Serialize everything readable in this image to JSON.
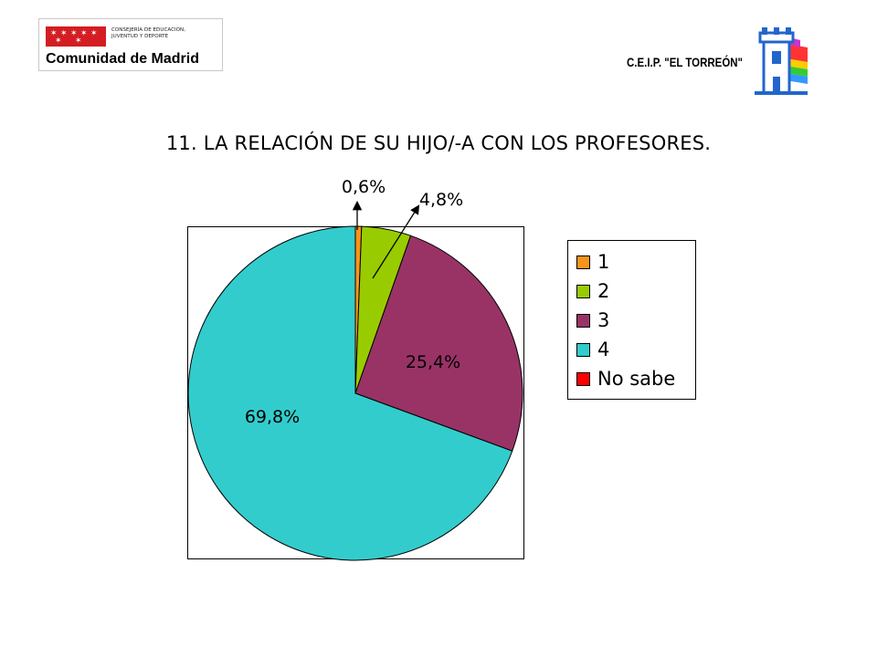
{
  "header": {
    "logo_line1": "CONSEJERÍA DE EDUCACIÓN,",
    "logo_line2": "JUVENTUD Y DEPORTE",
    "logo_main": "Comunidad de Madrid",
    "logo_color": "#d31d22",
    "school_name": "C.E.I.P. \"EL TORREÓN\"",
    "tower_icon": "tower-icon"
  },
  "chart_data": {
    "type": "pie",
    "title": "11. LA RELACIÓN DE SU HIJO/-A CON LOS PROFESORES.",
    "legend_position": "right",
    "slices": [
      {
        "name": "1",
        "value": 0.6,
        "label": "0,6%",
        "color": "#f7941d"
      },
      {
        "name": "2",
        "value": 4.8,
        "label": "4,8%",
        "color": "#99cc00"
      },
      {
        "name": "3",
        "value": 25.4,
        "label": "25,4%",
        "color": "#993366"
      },
      {
        "name": "4",
        "value": 69.8,
        "label": "69,8%",
        "color": "#33cccc"
      },
      {
        "name": "No sabe",
        "value": 0,
        "label": "",
        "color": "#ff0000"
      }
    ]
  }
}
